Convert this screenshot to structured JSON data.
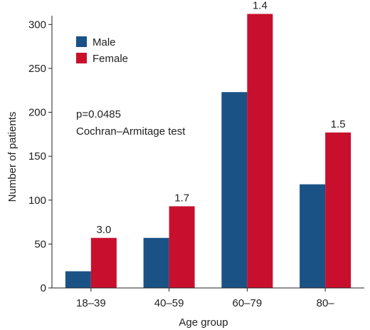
{
  "chart_data": {
    "type": "bar",
    "title": "",
    "xlabel": "Age group",
    "ylabel": "Number of patients",
    "categories": [
      "18–39",
      "40–59",
      "60–79",
      "80–"
    ],
    "series": [
      {
        "name": "Male",
        "values": [
          19,
          57,
          223,
          118
        ],
        "color": "#1a5286"
      },
      {
        "name": "Female",
        "values": [
          57,
          93,
          312,
          177
        ],
        "color": "#c8102e"
      }
    ],
    "ylim": [
      0,
      310
    ],
    "yticks": [
      0,
      50,
      100,
      150,
      200,
      250,
      300
    ],
    "ratio_labels": [
      "3.0",
      "1.7",
      "1.4",
      "1.5"
    ],
    "annotation": {
      "line1": "p=0.0485",
      "line2": "Cochran–Armitage test"
    },
    "legend_position": "top-left",
    "grid": false
  }
}
